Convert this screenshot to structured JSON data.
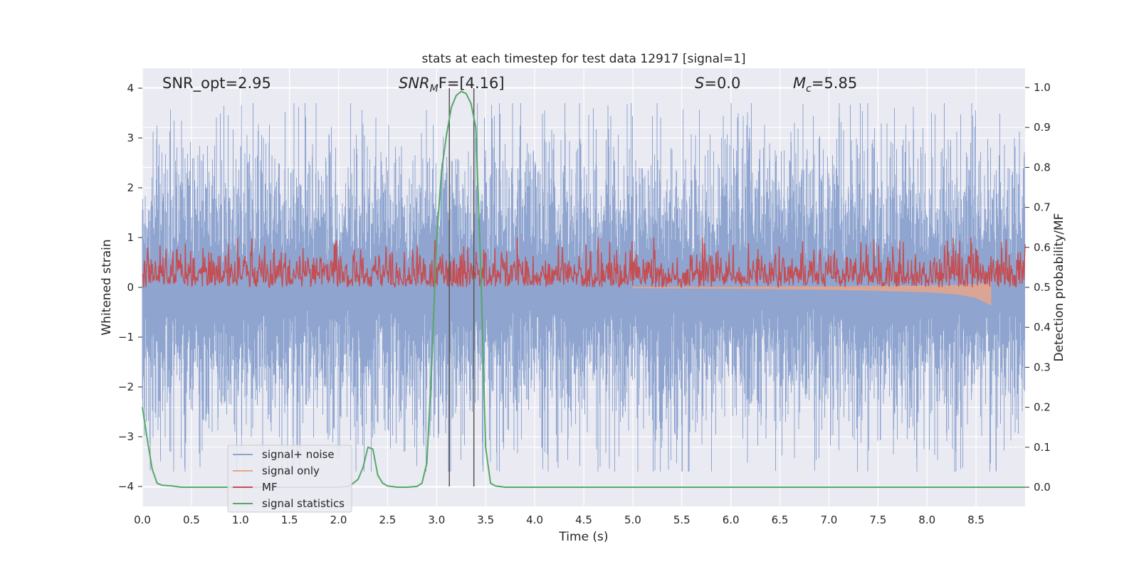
{
  "chart_data": {
    "type": "line",
    "title": "stats at each timestep for test data 12917 [signal=1]",
    "xlabel": "Time (s)",
    "ylabel_left": "Whitened strain",
    "ylabel_right": "Detection probability/MF",
    "xlim": [
      0.0,
      9.0
    ],
    "ylim_left": [
      -4.4,
      4.4
    ],
    "ylim_right": [
      -0.048,
      1.048
    ],
    "x_ticks": [
      "0.0",
      "0.5",
      "1.0",
      "1.5",
      "2.0",
      "2.5",
      "3.0",
      "3.5",
      "4.0",
      "4.5",
      "5.0",
      "5.5",
      "6.0",
      "6.5",
      "7.0",
      "7.5",
      "8.0",
      "8.5"
    ],
    "y_ticks_left": [
      "−4",
      "−3",
      "−2",
      "−1",
      "0",
      "1",
      "2",
      "3",
      "4"
    ],
    "y_ticks_right": [
      "0.0",
      "0.1",
      "0.2",
      "0.3",
      "0.4",
      "0.5",
      "0.6",
      "0.7",
      "0.8",
      "0.9",
      "1.0"
    ],
    "grid": true,
    "legend_placement": "lower-left",
    "annotations": {
      "snr_opt": "SNR_opt=2.95",
      "snr_mf_main": "SNR",
      "snr_mf_sub": "M",
      "snr_mf_rest": "F=[4.16]",
      "s_italic": "S",
      "s_rest": "=0.0",
      "mc_main": "M",
      "mc_sub": "c",
      "mc_rest": "=5.85"
    },
    "vertical_lines_x": [
      3.13,
      3.38
    ],
    "series": [
      {
        "name": "signal+ noise",
        "color": "#8fa5d0",
        "axis": "left",
        "description_envelope": {
          "typical_abs": 1.5,
          "peak_abs": 3.7
        }
      },
      {
        "name": "signal only",
        "color": "#e8a58a",
        "axis": "left",
        "x": [
          5.0,
          5.5,
          6.0,
          6.5,
          7.0,
          7.5,
          8.0,
          8.3,
          8.5,
          8.65
        ],
        "amplitude": [
          0.01,
          0.015,
          0.02,
          0.03,
          0.04,
          0.06,
          0.09,
          0.13,
          0.2,
          0.35
        ]
      },
      {
        "name": "MF",
        "color": "#c44e52",
        "axis": "right",
        "baseline": 0.5,
        "typical_max": 0.58,
        "peak_max": 0.625
      },
      {
        "name": "signal statistics",
        "color": "#55a868",
        "axis": "right",
        "x": [
          0.0,
          0.05,
          0.1,
          0.15,
          0.2,
          0.3,
          0.4,
          0.6,
          0.8,
          1.0,
          1.5,
          2.0,
          2.1,
          2.15,
          2.2,
          2.25,
          2.3,
          2.35,
          2.4,
          2.45,
          2.5,
          2.6,
          2.7,
          2.8,
          2.85,
          2.9,
          2.95,
          3.0,
          3.05,
          3.1,
          3.15,
          3.2,
          3.25,
          3.3,
          3.35,
          3.4,
          3.45,
          3.5,
          3.55,
          3.6,
          3.7,
          4.0,
          5.0,
          6.0,
          7.0,
          8.0,
          9.0
        ],
        "y": [
          0.2,
          0.12,
          0.045,
          0.01,
          0.005,
          0.003,
          0.0,
          0.0,
          0.0,
          0.0,
          0.0,
          0.0,
          0.002,
          0.01,
          0.02,
          0.05,
          0.1,
          0.095,
          0.03,
          0.01,
          0.003,
          0.0,
          0.0,
          0.002,
          0.01,
          0.06,
          0.3,
          0.62,
          0.79,
          0.88,
          0.95,
          0.98,
          0.99,
          0.985,
          0.96,
          0.9,
          0.55,
          0.1,
          0.01,
          0.003,
          0.0,
          0.0,
          0.0,
          0.0,
          0.0,
          0.0,
          0.0
        ]
      }
    ]
  }
}
